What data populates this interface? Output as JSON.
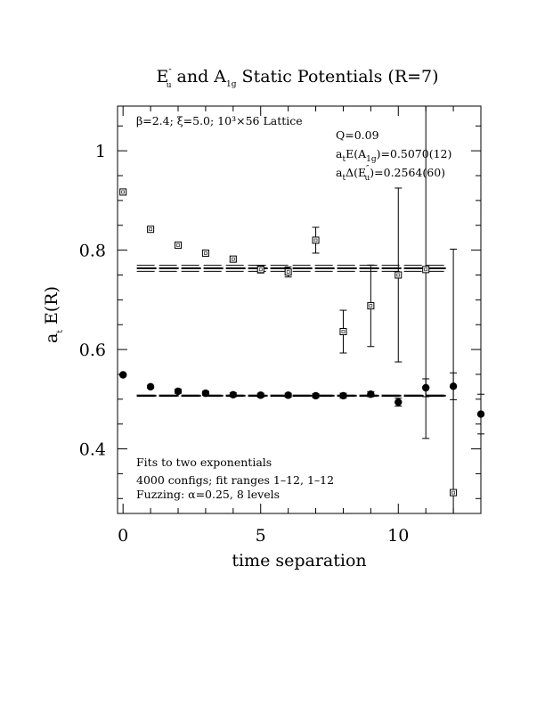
{
  "chart_data": {
    "type": "scatter",
    "title": {
      "pre": "E",
      "pre_sup": "″",
      "pre_sub": "u",
      "mid": " and A",
      "mid_sub": "1g",
      "post": " Static Potentials (R=7)"
    },
    "xlabel": "time separation",
    "ylabel": {
      "main": "a",
      "sub": "t",
      "rest": " E(R)"
    },
    "xlim": [
      -0.2,
      13
    ],
    "ylim": [
      0.27,
      1.09
    ],
    "x_ticks": [
      0,
      5,
      10
    ],
    "x_tick_labels": [
      "0",
      "5",
      "10"
    ],
    "y_ticks": [
      0.4,
      0.6,
      0.8,
      1.0
    ],
    "y_tick_labels": [
      "0.4",
      "0.6",
      "0.8",
      "1"
    ],
    "grid": false,
    "annotations": {
      "lattice": "β=2.4; ξ=5.0; 10³×56 Lattice",
      "q": "Q=0.09",
      "e_a1g": {
        "pre": "a",
        "pre_sub": "t",
        "mid": "E(A",
        "mid_sub": "1g",
        "post": ")=0.5070(12)"
      },
      "de_eu": {
        "pre": "a",
        "pre_sub": "t",
        "mid": "Δ(E",
        "mid_sup": "″",
        "mid_sub": "u",
        "post": ")=0.2564(60)"
      },
      "fits": "Fits to two exponentials",
      "configs": "4000 configs; fit ranges 1–12, 1–12",
      "fuzzing": "Fuzzing: α=0.25, 8 levels"
    },
    "series": [
      {
        "marker": "filled-circle",
        "x": [
          0,
          1,
          2,
          3,
          4,
          5,
          6,
          7,
          8,
          9,
          10,
          11,
          12,
          13
        ],
        "y": [
          0.549,
          0.525,
          0.516,
          0.512,
          0.509,
          0.508,
          0.508,
          0.507,
          0.507,
          0.51,
          0.494,
          0.523,
          0.526,
          0.47
        ],
        "err": [
          0.002,
          0.003,
          0.004,
          0.004,
          0.004,
          0.004,
          0.004,
          0.004,
          0.005,
          0.005,
          0.008,
          0.018,
          0.027,
          0.04
        ]
      },
      {
        "marker": "open-square",
        "x": [
          0,
          1,
          2,
          3,
          4,
          5,
          6,
          7,
          8,
          9,
          10,
          11,
          12
        ],
        "y": [
          0.917,
          0.842,
          0.81,
          0.794,
          0.782,
          0.761,
          0.756,
          0.82,
          0.636,
          0.688,
          0.75,
          0.761,
          0.312
        ],
        "err": [
          0.002,
          0.003,
          0.003,
          0.004,
          0.005,
          0.007,
          0.01,
          0.026,
          0.043,
          0.082,
          0.175,
          0.34,
          0.49
        ]
      }
    ],
    "fits": [
      {
        "series": 0,
        "center": 0.507,
        "band": 0.0012,
        "x_range": [
          0.5,
          11.8
        ]
      },
      {
        "series": 1,
        "center": 0.7634,
        "band": 0.006,
        "x_range": [
          0.5,
          11.8
        ]
      }
    ]
  }
}
